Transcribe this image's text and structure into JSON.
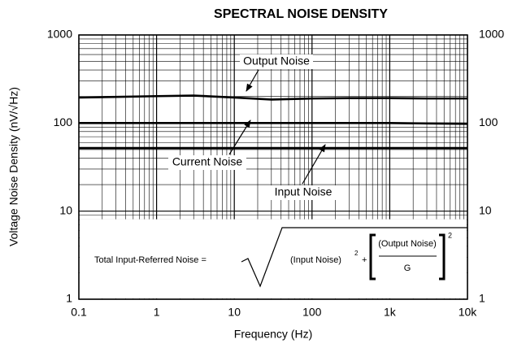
{
  "chart_data": {
    "type": "line",
    "title": "SPECTRAL NOISE DENSITY",
    "x_label": "Frequency (Hz)",
    "y_label": "Voltage Noise Density (nV/√Hz)",
    "x": [
      0.1,
      0.3,
      1,
      3,
      10,
      30,
      100,
      300,
      1000,
      3000,
      10000
    ],
    "series": [
      {
        "name": "Output Noise",
        "color": "#000000",
        "values": [
          195,
          198,
          202,
          205,
          195,
          185,
          190,
          192,
          192,
          190,
          190
        ]
      },
      {
        "name": "Current Noise",
        "color": "#000000",
        "values": [
          100,
          100,
          100,
          100,
          100,
          100,
          100,
          100,
          100,
          99,
          98
        ]
      },
      {
        "name": "Input Noise",
        "color": "#000000",
        "values": [
          52,
          52,
          52,
          52,
          52,
          52,
          52,
          52,
          52,
          52,
          52
        ]
      }
    ],
    "xlim": [
      0.1,
      10000
    ],
    "xticks": [
      0.1,
      1,
      10,
      100,
      {
        "value": 1000,
        "label": "1k"
      },
      {
        "value": 10000,
        "label": "10k"
      }
    ],
    "ylim": [
      1,
      1000
    ],
    "yticks": [
      1,
      10,
      100,
      1000
    ],
    "y2lim": [
      1,
      1000
    ],
    "y2ticks": [
      1,
      10,
      100,
      1000
    ],
    "xlog": true,
    "ylog": true,
    "grid": true,
    "minor_grid": true,
    "formula": {
      "lhs": "Total Input-Referred Noise =",
      "term1": "(Input Noise)",
      "exp1": "2",
      "plus": "+",
      "numerator": "(Output Noise)",
      "denominator": "G",
      "exp2": "2"
    }
  }
}
